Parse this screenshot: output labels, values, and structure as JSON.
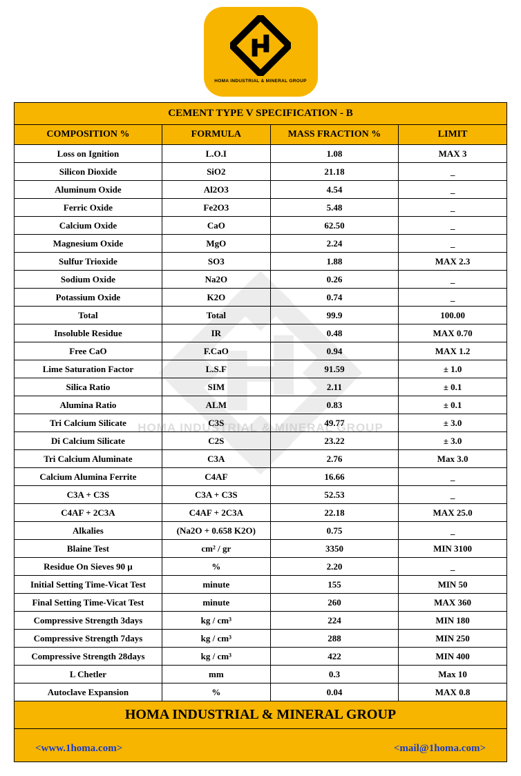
{
  "logo": {
    "caption": "HOMA INDUSTRIAL & MINERAL GROUP"
  },
  "watermark_text": "HOMA INDUSTRIAL & MINERAL GROUP",
  "colors": {
    "yellow": "#f7b500",
    "border": "#000000",
    "link_blue": "#1a3cc7",
    "watermark_gray": "#888888"
  },
  "table": {
    "title": "CEMENT TYPE V SPECIFICATION - B",
    "columns": [
      "COMPOSITION %",
      "FORMULA",
      "MASS FRACTION %",
      "LIMIT"
    ],
    "rows": [
      {
        "c": "Loss on Ignition",
        "f": "L.O.I",
        "m": "1.08",
        "l": "MAX 3"
      },
      {
        "c": "Silicon Dioxide",
        "f": "SiO2",
        "m": "21.18",
        "l": "_"
      },
      {
        "c": "Aluminum Oxide",
        "f": "Al2O3",
        "m": "4.54",
        "l": "_"
      },
      {
        "c": "Ferric Oxide",
        "f": "Fe2O3",
        "m": "5.48",
        "l": "_"
      },
      {
        "c": "Calcium Oxide",
        "f": "CaO",
        "m": "62.50",
        "l": "_"
      },
      {
        "c": "Magnesium Oxide",
        "f": "MgO",
        "m": "2.24",
        "l": "_"
      },
      {
        "c": "Sulfur Trioxide",
        "f": "SO3",
        "m": "1.88",
        "l": "MAX 2.3"
      },
      {
        "c": "Sodium Oxide",
        "f": "Na2O",
        "m": "0.26",
        "l": "_"
      },
      {
        "c": "Potassium Oxide",
        "f": "K2O",
        "m": "0.74",
        "l": "_"
      },
      {
        "c": "Total",
        "f": "Total",
        "m": "99.9",
        "l": "100.00"
      },
      {
        "c": "Insoluble Residue",
        "f": "IR",
        "m": "0.48",
        "l": "MAX 0.70"
      },
      {
        "c": "Free CaO",
        "f": "F.CaO",
        "m": "0.94",
        "l": "MAX 1.2"
      },
      {
        "c": "Lime Saturation Factor",
        "f": "L.S.F",
        "m": "91.59",
        "l": "± 1.0"
      },
      {
        "c": "Silica Ratio",
        "f": "SIM",
        "m": "2.11",
        "l": "± 0.1"
      },
      {
        "c": "Alumina Ratio",
        "f": "ALM",
        "m": "0.83",
        "l": "± 0.1"
      },
      {
        "c": "Tri Calcium Silicate",
        "f": "C3S",
        "m": "49.77",
        "l": "± 3.0"
      },
      {
        "c": "Di Calcium Silicate",
        "f": "C2S",
        "m": "23.22",
        "l": "± 3.0"
      },
      {
        "c": "Tri Calcium Aluminate",
        "f": "C3A",
        "m": "2.76",
        "l": "Max 3.0"
      },
      {
        "c": "Calcium Alumina Ferrite",
        "f": "C4AF",
        "m": "16.66",
        "l": "_"
      },
      {
        "c": "C3A + C3S",
        "f": "C3A + C3S",
        "m": "52.53",
        "l": "_"
      },
      {
        "c": "C4AF + 2C3A",
        "f": "C4AF + 2C3A",
        "m": "22.18",
        "l": "MAX 25.0"
      },
      {
        "c": "Alkalies",
        "f": "(Na2O + 0.658 K2O)",
        "m": "0.75",
        "l": "_"
      },
      {
        "c": "Blaine Test",
        "f": "cm² / gr",
        "m": "3350",
        "l": "MIN 3100"
      },
      {
        "c": "Residue On Sieves 90 μ",
        "f": "%",
        "m": "2.20",
        "l": "_"
      },
      {
        "c": "Initial Setting Time-Vicat Test",
        "f": "minute",
        "m": "155",
        "l": "MIN 50"
      },
      {
        "c": "Final Setting Time-Vicat Test",
        "f": "minute",
        "m": "260",
        "l": "MAX 360"
      },
      {
        "c": "Compressive Strength 3days",
        "f": "kg / cm³",
        "m": "224",
        "l": "MIN 180"
      },
      {
        "c": "Compressive Strength 7days",
        "f": "kg / cm³",
        "m": "288",
        "l": "MIN 250"
      },
      {
        "c": "Compressive Strength 28days",
        "f": "kg / cm³",
        "m": "422",
        "l": "MIN 400"
      },
      {
        "c": "L Chetler",
        "f": "mm",
        "m": "0.3",
        "l": "Max 10"
      },
      {
        "c": "Autoclave Expansion",
        "f": "%",
        "m": "0.04",
        "l": "MAX 0.8"
      }
    ],
    "footer_title": "HOMA INDUSTRIAL & MINERAL GROUP",
    "footer_link_left": "<www.1homa.com>",
    "footer_link_right": "<mail@1homa.com>"
  }
}
